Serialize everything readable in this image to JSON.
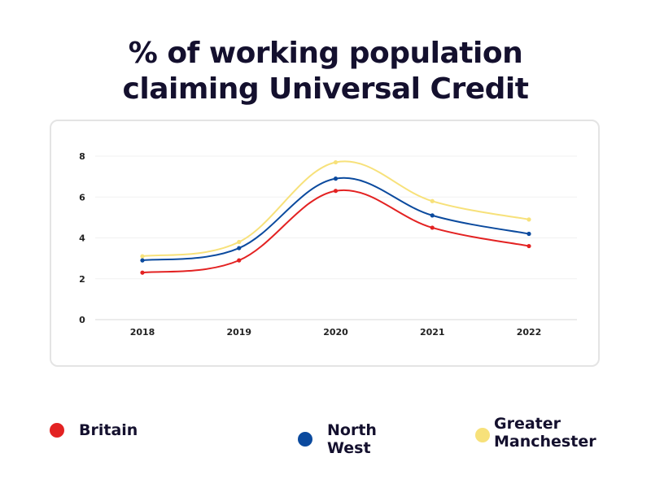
{
  "title": {
    "line1": "% of working population",
    "line2": "claiming Universal Credit"
  },
  "chart_data": {
    "type": "line",
    "title": "% of working population claiming Universal Credit",
    "categories": [
      "2018",
      "2019",
      "2020",
      "2021",
      "2022"
    ],
    "ylim": [
      0,
      8
    ],
    "yticks": [
      0,
      2,
      4,
      6,
      8
    ],
    "grid": true,
    "legend_position": "bottom",
    "series": [
      {
        "name": "Britain",
        "color": "#e32222",
        "values": [
          2.3,
          2.9,
          6.3,
          4.5,
          3.6
        ]
      },
      {
        "name": "North West",
        "color": "#0b4a9e",
        "values": [
          2.9,
          3.5,
          6.9,
          5.1,
          4.2
        ]
      },
      {
        "name": "Greater Manchester",
        "color": "#f7e17a",
        "values": [
          3.1,
          3.8,
          7.7,
          5.8,
          4.9
        ]
      }
    ]
  },
  "legend": [
    {
      "label": "Britain",
      "color": "#e32222"
    },
    {
      "label": "North West",
      "color": "#0b4a9e"
    },
    {
      "label": "Greater Manchester",
      "color": "#f7e17a"
    }
  ]
}
